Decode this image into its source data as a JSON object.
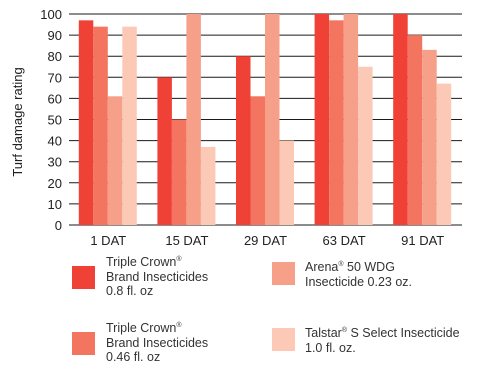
{
  "chart_data": {
    "type": "bar",
    "categories": [
      "1 DAT",
      "15 DAT",
      "29 DAT",
      "63 DAT",
      "91 DAT"
    ],
    "ylabel": "Turf damage rating",
    "xlabel": "",
    "ylim": [
      0,
      100
    ],
    "yticks": [
      0,
      10,
      20,
      30,
      40,
      50,
      60,
      70,
      80,
      90,
      100
    ],
    "grid": true,
    "legend_position": "bottom",
    "series": [
      {
        "name": "Triple Crown® Brand Insecticides 0.8 fl. oz",
        "color": "#ef4136",
        "values": [
          97,
          70,
          80,
          100,
          100
        ]
      },
      {
        "name": "Triple Crown® Brand Insecticides 0.46 fl. oz",
        "color": "#f37560",
        "values": [
          94,
          50,
          61,
          97,
          90
        ]
      },
      {
        "name": "Arena® 50 WDG Insecticide 0.23 oz.",
        "color": "#f6a08a",
        "values": [
          61,
          100,
          100,
          100,
          83
        ]
      },
      {
        "name": "Talstar® S Select Insecticide 1.0 fl. oz.",
        "color": "#fcc9b6",
        "values": [
          94,
          37,
          40,
          75,
          67
        ]
      }
    ]
  },
  "legend": {
    "item1": {
      "line1": "Triple Crown",
      "mark": "®",
      "line2": "Brand Insecticides",
      "line3": "0.8 fl. oz",
      "color": "#ef4136"
    },
    "item2": {
      "line1": "Triple Crown",
      "mark": "®",
      "line2": "Brand Insecticides",
      "line3": "0.46 fl. oz",
      "color": "#f37560"
    },
    "item3": {
      "line1a": "Arena",
      "mark": "®",
      "line1b": " 50 WDG",
      "line2": "Insecticide 0.23 oz.",
      "color": "#f6a08a"
    },
    "item4": {
      "line1a": "Talstar",
      "mark": "®",
      "line1b": " S Select Insecticide",
      "line2": "1.0 fl. oz.",
      "color": "#fcc9b6"
    }
  }
}
